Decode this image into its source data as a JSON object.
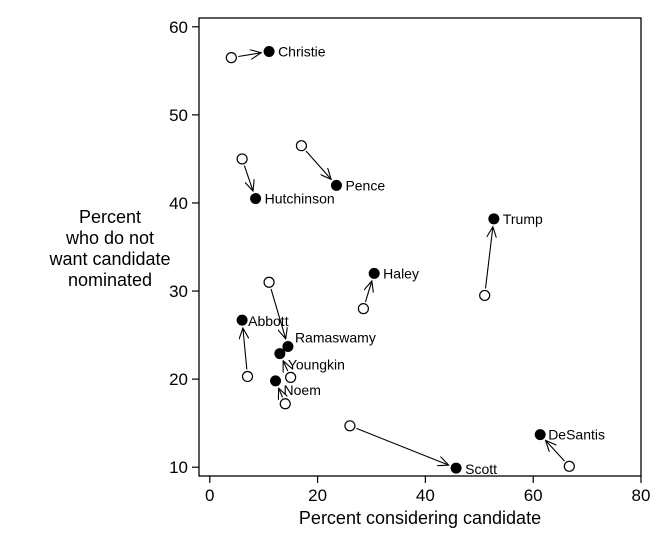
{
  "chart_data": {
    "type": "scatter",
    "title": "",
    "xlabel": "Percent considering candidate",
    "ylabel_lines": [
      "Percent",
      "who do not",
      "want candidate",
      "nominated"
    ],
    "xlim": [
      -2,
      80
    ],
    "ylim": [
      9,
      61
    ],
    "xticks": [
      0,
      20,
      40,
      60,
      80
    ],
    "yticks": [
      10,
      20,
      30,
      40,
      50,
      60
    ],
    "grid": false,
    "legend": "none",
    "markers": {
      "start": "hollow circle",
      "end": "filled circle"
    },
    "candidates": [
      {
        "name": "Christie",
        "from": [
          4,
          56.5
        ],
        "to": [
          11,
          57.2
        ]
      },
      {
        "name": "Pence",
        "from": [
          17,
          46.5
        ],
        "to": [
          23.5,
          42
        ]
      },
      {
        "name": "Hutchinson",
        "from": [
          6,
          45
        ],
        "to": [
          8.5,
          40.5
        ]
      },
      {
        "name": "Trump",
        "from": [
          51,
          29.5
        ],
        "to": [
          52.7,
          38.2
        ]
      },
      {
        "name": "Haley",
        "from": [
          28.5,
          28
        ],
        "to": [
          30.5,
          32
        ]
      },
      {
        "name": "Abbott",
        "from": [
          7,
          20.3
        ],
        "to": [
          6,
          26.7
        ]
      },
      {
        "name": "Ramaswamy",
        "from": [
          11,
          31
        ],
        "to": [
          14.5,
          23.7
        ]
      },
      {
        "name": "Youngkin",
        "from": [
          15,
          20.2
        ],
        "to": [
          13,
          22.9
        ]
      },
      {
        "name": "Noem",
        "from": [
          14,
          17.2
        ],
        "to": [
          12.2,
          19.8
        ]
      },
      {
        "name": "Scott",
        "from": [
          26,
          14.7
        ],
        "to": [
          45.7,
          9.9
        ]
      },
      {
        "name": "DeSantis",
        "from": [
          66.7,
          10.1
        ],
        "to": [
          61.3,
          13.7
        ]
      }
    ]
  }
}
